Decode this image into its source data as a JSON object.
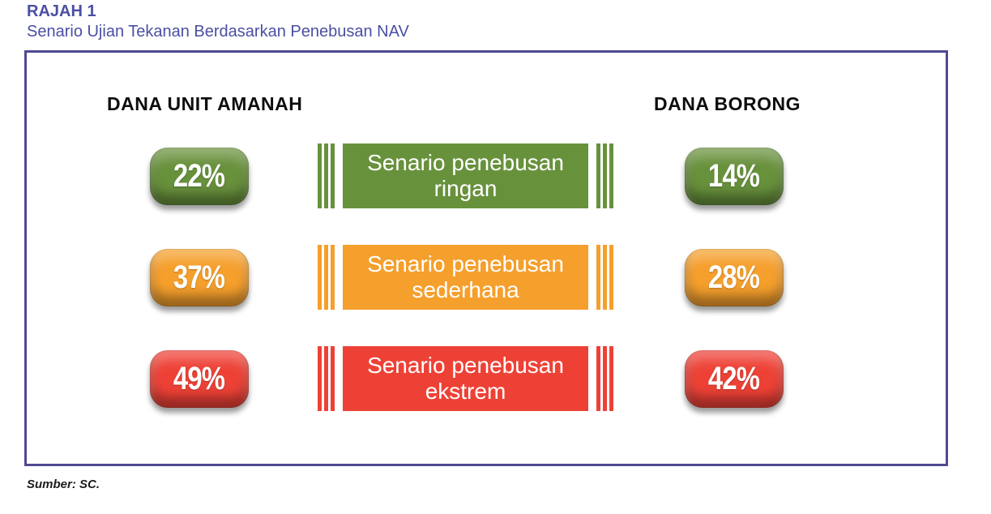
{
  "figure": {
    "label": "RAJAH 1",
    "title": "Senario Ujian Tekanan Berdasarkan Penebusan NAV",
    "source": "Sumber: SC."
  },
  "panel": {
    "left_header": "DANA UNIT AMANAH",
    "right_header": "DANA BORONG"
  },
  "rows": [
    {
      "scenario": "Senario penebusan ringan",
      "unit_trust_value": "22%",
      "wholesale_value": "14%",
      "color": "#68913C",
      "style": "--c:#68913C"
    },
    {
      "scenario": "Senario penebusan sederhana",
      "unit_trust_value": "37%",
      "wholesale_value": "28%",
      "color": "#F59F2C",
      "style": "--c:#F59F2C"
    },
    {
      "scenario": "Senario penebusan ekstrem",
      "unit_trust_value": "49%",
      "wholesale_value": "42%",
      "color": "#EE4136",
      "style": "--c:#EE4136"
    }
  ],
  "colors": {
    "title_text": "#4A4FA2",
    "panel_border": "#4F4A92",
    "header_text": "#0D0D0D",
    "green": "#68913C",
    "orange": "#F59F2C",
    "red": "#EE4136",
    "value_text": "#FFFFFF"
  },
  "chart_data": {
    "type": "table",
    "title": "Senario Ujian Tekanan Berdasarkan Penebusan NAV",
    "categories": [
      "Senario penebusan ringan",
      "Senario penebusan sederhana",
      "Senario penebusan ekstrem"
    ],
    "series": [
      {
        "name": "DANA UNIT AMANAH",
        "values": [
          22,
          37,
          49
        ]
      },
      {
        "name": "DANA BORONG",
        "values": [
          14,
          28,
          42
        ]
      }
    ],
    "unit": "%",
    "row_colors": [
      "#68913C",
      "#F59F2C",
      "#EE4136"
    ],
    "source": "SC"
  }
}
